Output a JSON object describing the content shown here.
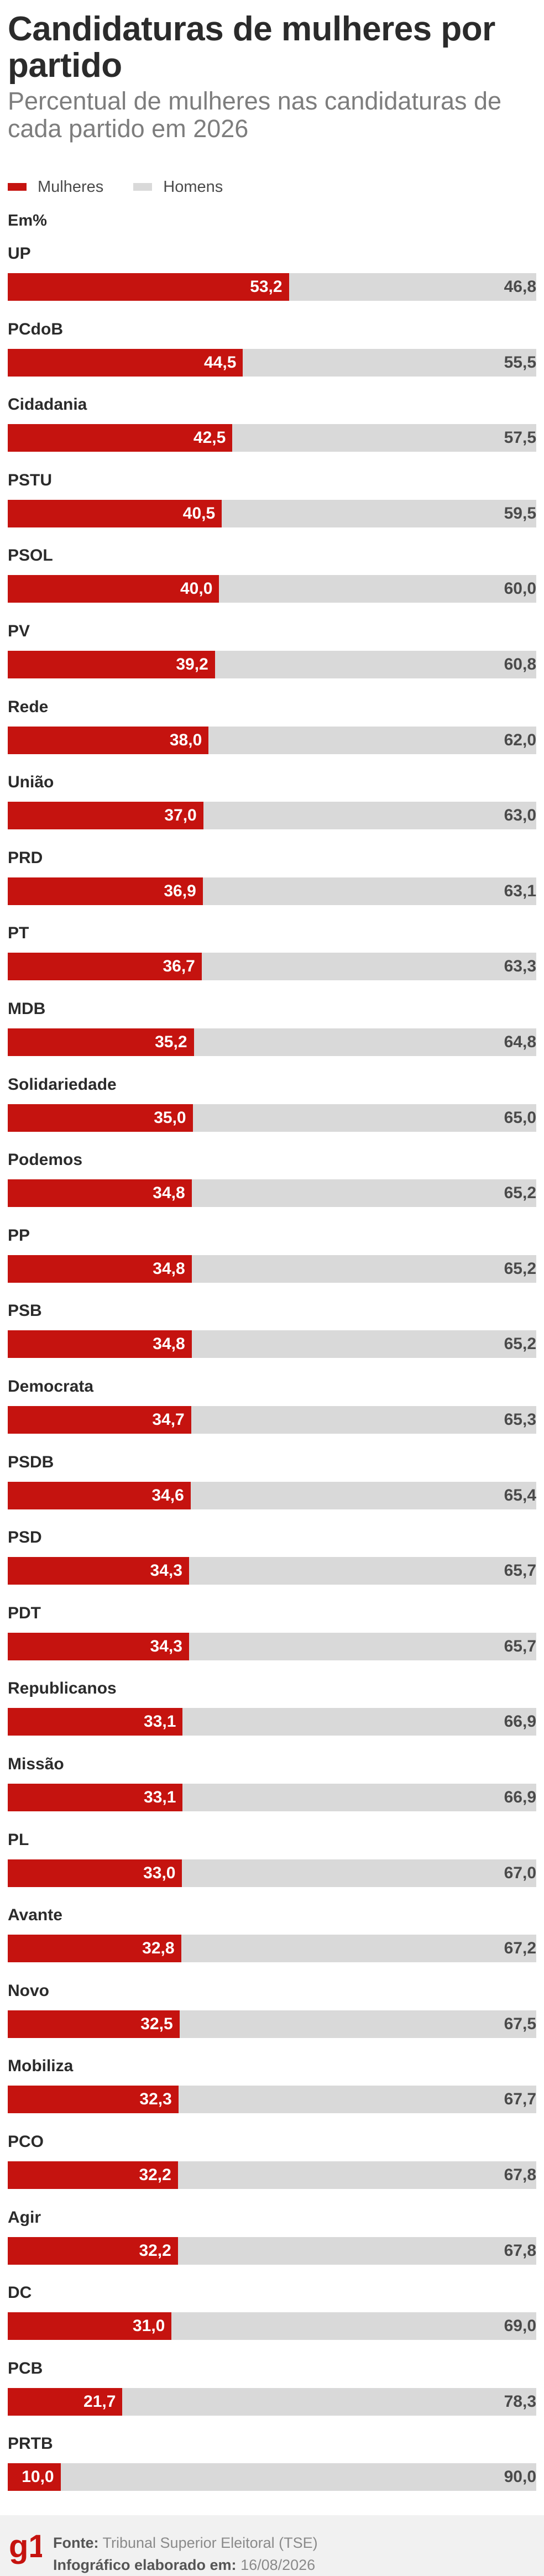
{
  "title": "Candidaturas de mulheres por partido",
  "subtitle": "Percentual de mulheres nas candidaturas de cada partido em 2026",
  "legend": {
    "women": "Mulheres",
    "men": "Homens"
  },
  "unit": "Em%",
  "colors": {
    "women": "#c5130f",
    "men": "#d9d9d9"
  },
  "chart_data": {
    "type": "bar",
    "orientation": "horizontal",
    "stacked": true,
    "categories": [
      "UP",
      "PCdoB",
      "Cidadania",
      "PSTU",
      "PSOL",
      "PV",
      "Rede",
      "União",
      "PRD",
      "PT",
      "MDB",
      "Solidariedade",
      "Podemos",
      "PP",
      "PSB",
      "Democrata",
      "PSDB",
      "PSD",
      "PDT",
      "Republicanos",
      "Missão",
      "PL",
      "Avante",
      "Novo",
      "Mobiliza",
      "PCO",
      "Agir",
      "DC",
      "PCB",
      "PRTB"
    ],
    "series": [
      {
        "name": "Mulheres",
        "values": [
          53.2,
          44.5,
          42.5,
          40.5,
          40.0,
          39.2,
          38.0,
          37.0,
          36.9,
          36.7,
          35.2,
          35.0,
          34.8,
          34.8,
          34.8,
          34.7,
          34.6,
          34.3,
          34.3,
          33.1,
          33.1,
          33.0,
          32.8,
          32.5,
          32.3,
          32.2,
          32.2,
          31.0,
          21.7,
          10.0
        ]
      },
      {
        "name": "Homens",
        "values": [
          46.8,
          55.5,
          57.5,
          59.5,
          60.0,
          60.8,
          62.0,
          63.0,
          63.1,
          63.3,
          64.8,
          65.0,
          65.2,
          65.2,
          65.2,
          65.3,
          65.4,
          65.7,
          65.7,
          66.9,
          66.9,
          67.0,
          67.2,
          67.5,
          67.7,
          67.8,
          67.8,
          69.0,
          78.3,
          90.0
        ]
      }
    ],
    "labels_women": [
      "53,2",
      "44,5",
      "42,5",
      "40,5",
      "40,0",
      "39,2",
      "38,0",
      "37,0",
      "36,9",
      "36,7",
      "35,2",
      "35,0",
      "34,8",
      "34,8",
      "34,8",
      "34,7",
      "34,6",
      "34,3",
      "34,3",
      "33,1",
      "33,1",
      "33,0",
      "32,8",
      "32,5",
      "32,3",
      "32,2",
      "32,2",
      "31,0",
      "21,7",
      "10,0"
    ],
    "labels_men": [
      "46,8",
      "55,5",
      "57,5",
      "59,5",
      "60,0",
      "60,8",
      "62,0",
      "63,0",
      "63,1",
      "63,3",
      "64,8",
      "65,0",
      "65,2",
      "65,2",
      "65,2",
      "65,3",
      "65,4",
      "65,7",
      "65,7",
      "66,9",
      "66,9",
      "67,0",
      "67,2",
      "67,5",
      "67,7",
      "67,8",
      "67,8",
      "69,0",
      "78,3",
      "90,0"
    ],
    "xlim": [
      0,
      100
    ],
    "grid": false,
    "legend_position": "top-left"
  },
  "footer": {
    "logo": "g1",
    "source_label": "Fonte:",
    "source_value": "Tribunal Superior Eleitoral (TSE)",
    "made_label": "Infográfico elaborado em:",
    "made_value": "16/08/2026"
  }
}
